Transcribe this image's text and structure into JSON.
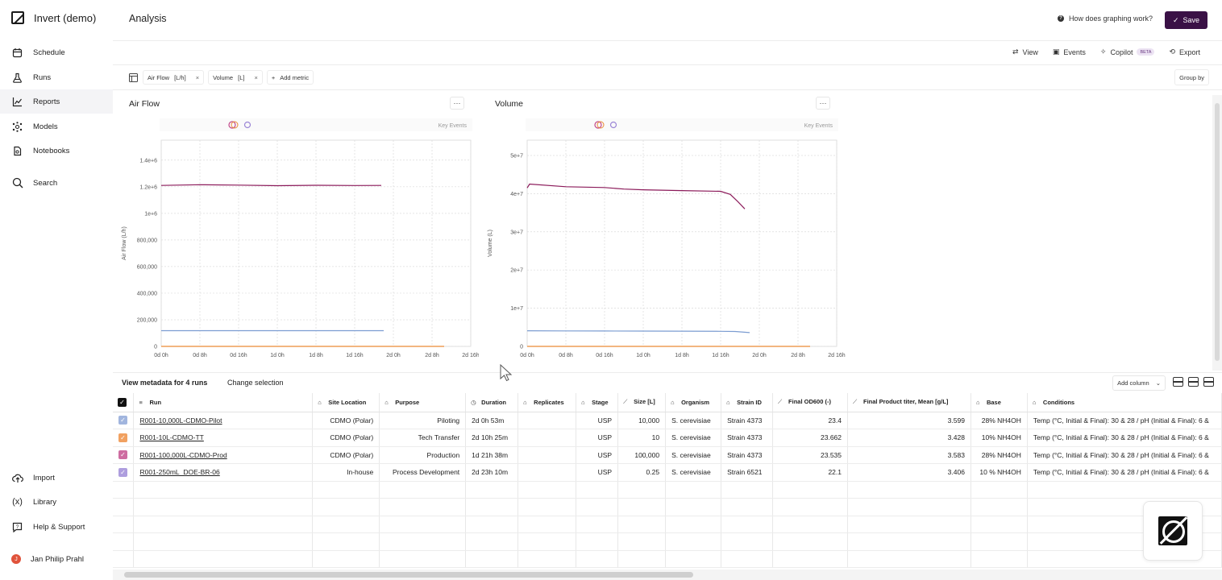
{
  "app": {
    "title": "Invert (demo)"
  },
  "sidebar": {
    "items": [
      {
        "label": "Schedule",
        "icon": "calendar-icon"
      },
      {
        "label": "Runs",
        "icon": "flask-icon"
      },
      {
        "label": "Reports",
        "icon": "chart-line-icon"
      },
      {
        "label": "Models",
        "icon": "network-icon"
      },
      {
        "label": "Notebooks",
        "icon": "notebook-icon"
      },
      {
        "label": "Search",
        "icon": "search-icon"
      }
    ],
    "bottom": [
      {
        "label": "Import",
        "icon": "upload-cloud-icon"
      },
      {
        "label": "Library",
        "icon": "variable-icon"
      },
      {
        "label": "Help & Support",
        "icon": "help-chat-icon"
      }
    ],
    "user": {
      "name": "Jan Philip Prahl",
      "initial": "J"
    }
  },
  "header": {
    "title": "Analysis",
    "help_label": "How does graphing work?",
    "save_label": "Save"
  },
  "toolbar": {
    "view": "View",
    "events": "Events",
    "copilot": "Copilot",
    "beta": "BETA",
    "export": "Export"
  },
  "metrics": [
    {
      "name": "Air Flow",
      "unit": "[L/h]"
    },
    {
      "name": "Volume",
      "unit": "[L]"
    }
  ],
  "add_metric": "Add metric",
  "group_by": "Group by",
  "charts_ui": {
    "key_events": "Key Events",
    "menu_glyph": "···"
  },
  "chart_data": [
    {
      "type": "line",
      "title": "Air Flow",
      "ylabel": "Air Flow (L/h)",
      "xlabel": "",
      "x_ticks": [
        "0d 0h",
        "0d 8h",
        "0d 16h",
        "1d 0h",
        "1d 8h",
        "1d 16h",
        "2d 0h",
        "2d 8h",
        "2d 16h"
      ],
      "x_range_hours": [
        0,
        64
      ],
      "y_ticks": [
        "0",
        "200,000",
        "400,000",
        "600,000",
        "800,000",
        "1e+6",
        "1.2e+6",
        "1.4e+6"
      ],
      "y_tick_values": [
        0,
        200000,
        400000,
        600000,
        800000,
        1000000,
        1200000,
        1400000
      ],
      "ylim": [
        0,
        1550000
      ],
      "grid": true,
      "series": [
        {
          "color": "#8b1a5a",
          "x_hours": [
            0,
            8,
            16,
            24,
            32,
            40,
            45.5
          ],
          "values": [
            1210000,
            1215000,
            1212000,
            1208000,
            1211000,
            1209000,
            1210000
          ]
        },
        {
          "color": "#7b9cd1",
          "x_hours": [
            0,
            8,
            16,
            24,
            32,
            40,
            46
          ],
          "values": [
            118000,
            118000,
            118000,
            118000,
            118000,
            118000,
            118000
          ]
        },
        {
          "color": "#e98a35",
          "x_hours": [
            0,
            10,
            20,
            34,
            58.5
          ],
          "values": [
            0,
            0,
            0,
            0,
            0
          ]
        }
      ]
    },
    {
      "type": "line",
      "title": "Volume",
      "ylabel": "Volume (L)",
      "xlabel": "",
      "x_ticks": [
        "0d 0h",
        "0d 8h",
        "0d 16h",
        "1d 0h",
        "1d 8h",
        "1d 16h",
        "2d 0h",
        "2d 8h",
        "2d 16h"
      ],
      "x_range_hours": [
        0,
        64
      ],
      "y_ticks": [
        "0",
        "1e+7",
        "2e+7",
        "3e+7",
        "4e+7",
        "5e+7"
      ],
      "y_tick_values": [
        0,
        10000000,
        20000000,
        30000000,
        40000000,
        50000000
      ],
      "ylim": [
        0,
        54000000
      ],
      "grid": true,
      "series": [
        {
          "color": "#8b1a5a",
          "x_hours": [
            0,
            0.5,
            8,
            16,
            20,
            24,
            32,
            40,
            42,
            43.5,
            45
          ],
          "values": [
            41500000,
            42500000,
            41800000,
            41600000,
            41200000,
            41000000,
            40800000,
            40600000,
            39800000,
            38000000,
            36000000
          ]
        },
        {
          "color": "#7b9cd1",
          "x_hours": [
            0,
            8,
            16,
            24,
            32,
            40,
            43,
            46
          ],
          "values": [
            4100000,
            4050000,
            4020000,
            4000000,
            3980000,
            3950000,
            3900000,
            3600000
          ]
        },
        {
          "color": "#e98a35",
          "x_hours": [
            0,
            20,
            34,
            58.5
          ],
          "values": [
            0,
            0,
            0,
            0
          ]
        }
      ]
    }
  ],
  "metadata_bar": {
    "view_label": "View metadata for 4 runs",
    "change_label": "Change selection",
    "add_column": "Add column"
  },
  "table": {
    "columns": [
      "Run",
      "Site Location",
      "Purpose",
      "Duration",
      "Replicates",
      "Stage",
      "Size [L]",
      "Organism",
      "Strain ID",
      "Final OD600 (-)",
      "Final Product titer, Mean [g/L]",
      "Base",
      "Conditions"
    ],
    "rows": [
      {
        "color": "#8aa3d6",
        "cells": [
          "R001-10,000L-CDMO-Pilot",
          "CDMO (Polar)",
          "Piloting",
          "2d 0h 53m",
          "",
          "USP",
          "10,000",
          "S. cerevisiae",
          "Strain 4373",
          "23.4",
          "3.599",
          "28% NH4OH",
          "Temp (°C, Initial & Final): 30 & 28 / pH (Initial & Final): 6 &"
        ]
      },
      {
        "color": "#ee8a3a",
        "cells": [
          "R001-10L-CDMO-TT",
          "CDMO (Polar)",
          "Tech Transfer",
          "2d 10h 25m",
          "",
          "USP",
          "10",
          "S. cerevisiae",
          "Strain 4373",
          "23.662",
          "3.428",
          "10% NH4OH",
          "Temp (°C, Initial & Final): 30 & 28 / pH (Initial & Final): 6 &"
        ]
      },
      {
        "color": "#c2498a",
        "cells": [
          "R001-100,000L-CDMO-Prod",
          "CDMO (Polar)",
          "Production",
          "1d 21h 38m",
          "",
          "USP",
          "100,000",
          "S. cerevisiae",
          "Strain 4373",
          "23.535",
          "3.583",
          "28% NH4OH",
          "Temp (°C, Initial & Final): 30 & 28 / pH (Initial & Final): 6 &"
        ]
      },
      {
        "color": "#9b86d6",
        "cells": [
          "R001-250mL_DOE-BR-06",
          "In-house",
          "Process Development",
          "2d 23h 10m",
          "",
          "USP",
          "0.25",
          "S. cerevisiae",
          "Strain 6521",
          "22.1",
          "3.406",
          "10 % NH4OH",
          "Temp (°C, Initial & Final): 30 & 28 / pH (Initial & Final): 6 &"
        ]
      }
    ]
  }
}
